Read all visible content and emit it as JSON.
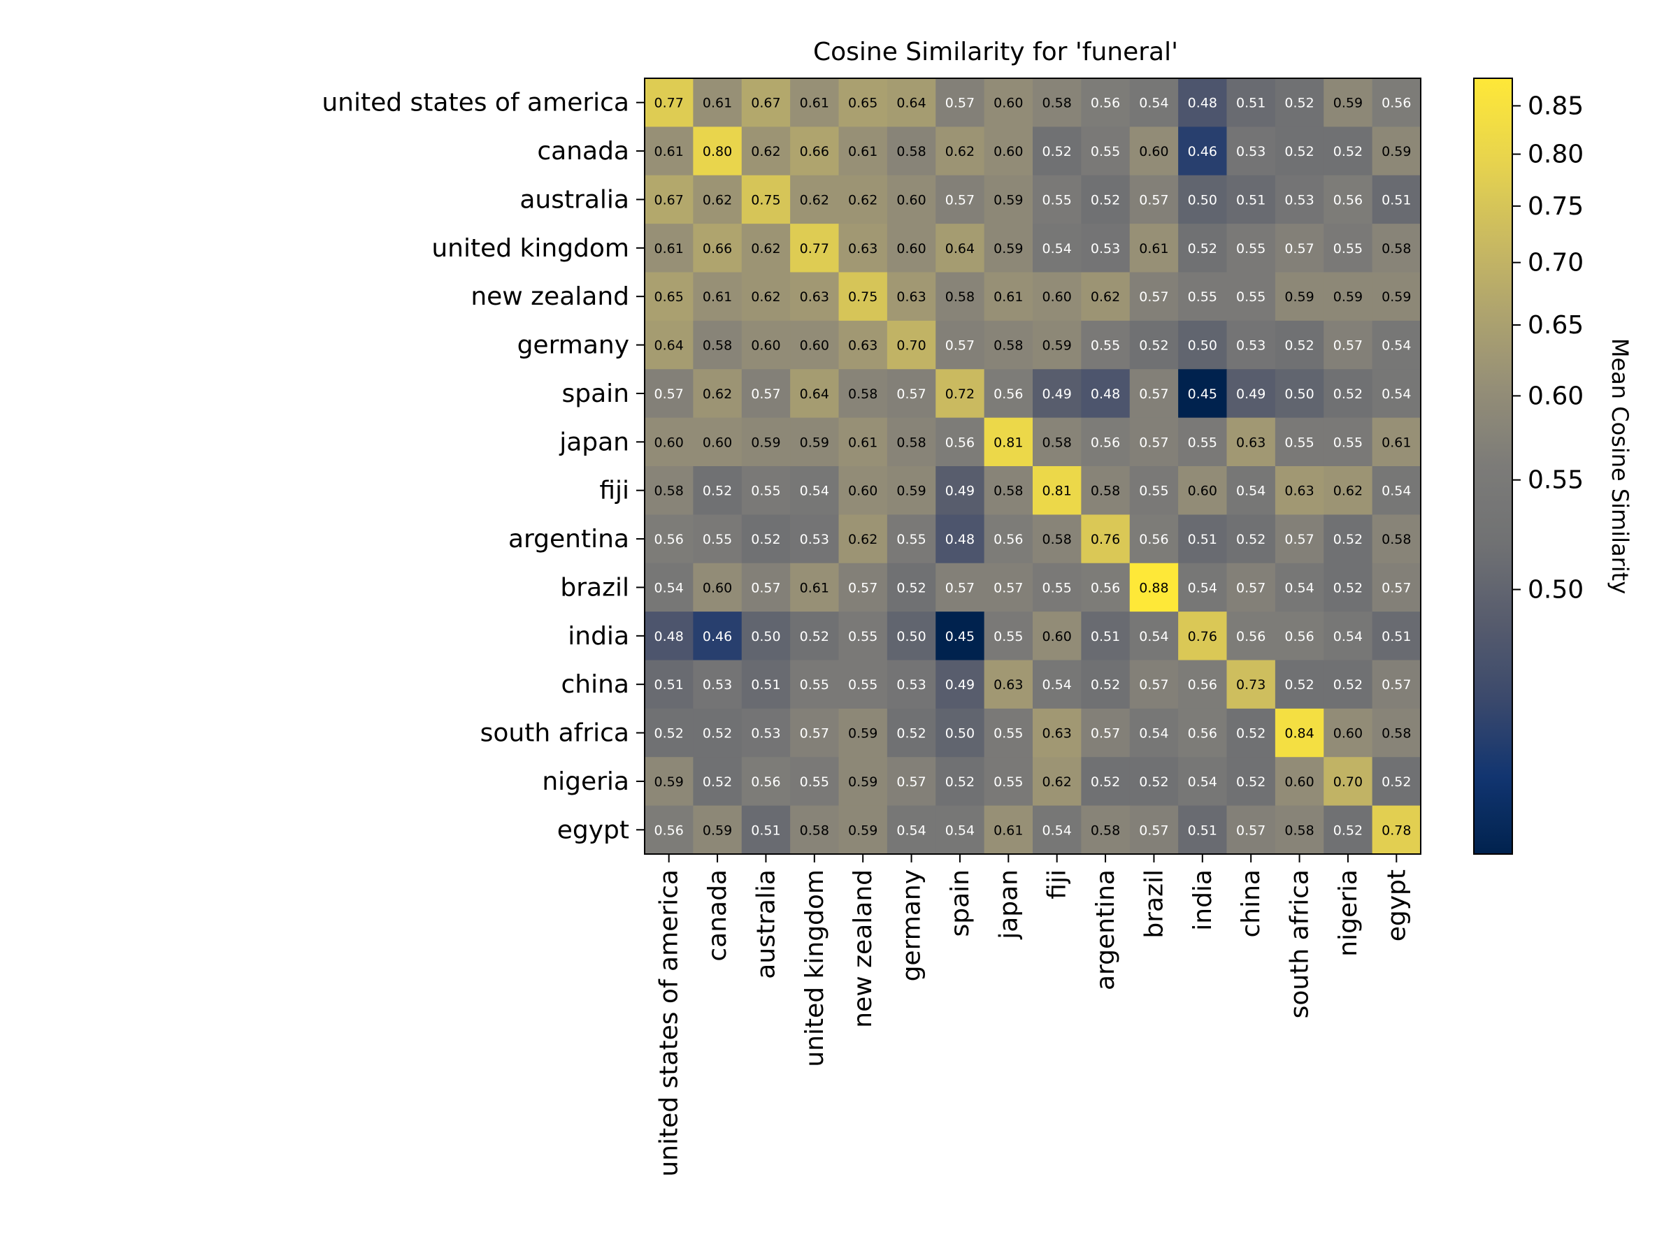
{
  "chart_data": {
    "type": "heatmap",
    "title": "Cosine Similarity for 'funeral'",
    "colorbar_label": "Mean Cosine Similarity",
    "colormap": "cividis",
    "colorbar_range": [
      0.45,
      0.88
    ],
    "colorbar_ticks": [
      0.5,
      0.55,
      0.6,
      0.65,
      0.7,
      0.75,
      0.8,
      0.85
    ],
    "categories": [
      "united states of america",
      "canada",
      "australia",
      "united kingdom",
      "new zealand",
      "germany",
      "spain",
      "japan",
      "fiji",
      "argentina",
      "brazil",
      "india",
      "china",
      "south africa",
      "nigeria",
      "egypt"
    ],
    "values": [
      [
        0.77,
        0.61,
        0.67,
        0.61,
        0.65,
        0.64,
        0.57,
        0.6,
        0.58,
        0.56,
        0.54,
        0.48,
        0.51,
        0.52,
        0.59,
        0.56
      ],
      [
        0.61,
        0.8,
        0.62,
        0.66,
        0.61,
        0.58,
        0.62,
        0.6,
        0.52,
        0.55,
        0.6,
        0.46,
        0.53,
        0.52,
        0.52,
        0.59
      ],
      [
        0.67,
        0.62,
        0.75,
        0.62,
        0.62,
        0.6,
        0.57,
        0.59,
        0.55,
        0.52,
        0.57,
        0.5,
        0.51,
        0.53,
        0.56,
        0.51
      ],
      [
        0.61,
        0.66,
        0.62,
        0.77,
        0.63,
        0.6,
        0.64,
        0.59,
        0.54,
        0.53,
        0.61,
        0.52,
        0.55,
        0.57,
        0.55,
        0.58
      ],
      [
        0.65,
        0.61,
        0.62,
        0.63,
        0.75,
        0.63,
        0.58,
        0.61,
        0.6,
        0.62,
        0.57,
        0.55,
        0.55,
        0.59,
        0.59,
        0.59
      ],
      [
        0.64,
        0.58,
        0.6,
        0.6,
        0.63,
        0.7,
        0.57,
        0.58,
        0.59,
        0.55,
        0.52,
        0.5,
        0.53,
        0.52,
        0.57,
        0.54
      ],
      [
        0.57,
        0.62,
        0.57,
        0.64,
        0.58,
        0.57,
        0.72,
        0.56,
        0.49,
        0.48,
        0.57,
        0.45,
        0.49,
        0.5,
        0.52,
        0.54
      ],
      [
        0.6,
        0.6,
        0.59,
        0.59,
        0.61,
        0.58,
        0.56,
        0.81,
        0.58,
        0.56,
        0.57,
        0.55,
        0.63,
        0.55,
        0.55,
        0.61
      ],
      [
        0.58,
        0.52,
        0.55,
        0.54,
        0.6,
        0.59,
        0.49,
        0.58,
        0.81,
        0.58,
        0.55,
        0.6,
        0.54,
        0.63,
        0.62,
        0.54
      ],
      [
        0.56,
        0.55,
        0.52,
        0.53,
        0.62,
        0.55,
        0.48,
        0.56,
        0.58,
        0.76,
        0.56,
        0.51,
        0.52,
        0.57,
        0.52,
        0.58
      ],
      [
        0.54,
        0.6,
        0.57,
        0.61,
        0.57,
        0.52,
        0.57,
        0.57,
        0.55,
        0.56,
        0.88,
        0.54,
        0.57,
        0.54,
        0.52,
        0.57
      ],
      [
        0.48,
        0.46,
        0.5,
        0.52,
        0.55,
        0.5,
        0.45,
        0.55,
        0.6,
        0.51,
        0.54,
        0.76,
        0.56,
        0.56,
        0.54,
        0.51
      ],
      [
        0.51,
        0.53,
        0.51,
        0.55,
        0.55,
        0.53,
        0.49,
        0.63,
        0.54,
        0.52,
        0.57,
        0.56,
        0.73,
        0.52,
        0.52,
        0.57
      ],
      [
        0.52,
        0.52,
        0.53,
        0.57,
        0.59,
        0.52,
        0.5,
        0.55,
        0.63,
        0.57,
        0.54,
        0.56,
        0.52,
        0.84,
        0.6,
        0.58
      ],
      [
        0.59,
        0.52,
        0.56,
        0.55,
        0.59,
        0.57,
        0.52,
        0.55,
        0.62,
        0.52,
        0.52,
        0.54,
        0.52,
        0.6,
        0.7,
        0.52
      ],
      [
        0.56,
        0.59,
        0.51,
        0.58,
        0.59,
        0.54,
        0.54,
        0.61,
        0.54,
        0.58,
        0.57,
        0.51,
        0.57,
        0.58,
        0.52,
        0.78
      ]
    ]
  }
}
